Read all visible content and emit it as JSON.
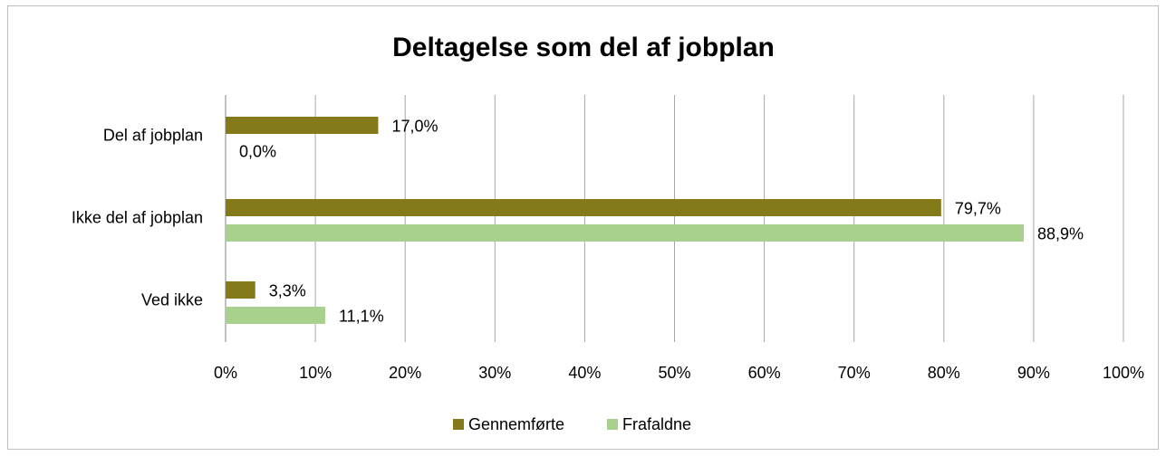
{
  "chart_data": {
    "type": "hbar",
    "title": "Deltagelse som del af jobplan",
    "categories": [
      "Del af jobplan",
      "Ikke del af jobplan",
      "Ved ikke"
    ],
    "series": [
      {
        "name": "Gennemførte",
        "color": "#847a1a",
        "values": [
          17.0,
          79.7,
          3.3
        ],
        "value_labels": [
          "17,0%",
          "79,7%",
          "3,3%"
        ]
      },
      {
        "name": "Frafaldne",
        "color": "#a9d18e",
        "values": [
          0.0,
          88.9,
          11.1
        ],
        "value_labels": [
          "0,0%",
          "88,9%",
          "11,1%"
        ]
      }
    ],
    "xlim": [
      0,
      100
    ],
    "xticks": [
      {
        "value": 0,
        "label": "0%"
      },
      {
        "value": 10,
        "label": "10%"
      },
      {
        "value": 20,
        "label": "20%"
      },
      {
        "value": 30,
        "label": "30%"
      },
      {
        "value": 40,
        "label": "40%"
      },
      {
        "value": 50,
        "label": "50%"
      },
      {
        "value": 60,
        "label": "60%"
      },
      {
        "value": 70,
        "label": "70%"
      },
      {
        "value": 80,
        "label": "80%"
      },
      {
        "value": 90,
        "label": "90%"
      },
      {
        "value": 100,
        "label": "100%"
      }
    ],
    "grid": true,
    "legend": "bottom"
  }
}
